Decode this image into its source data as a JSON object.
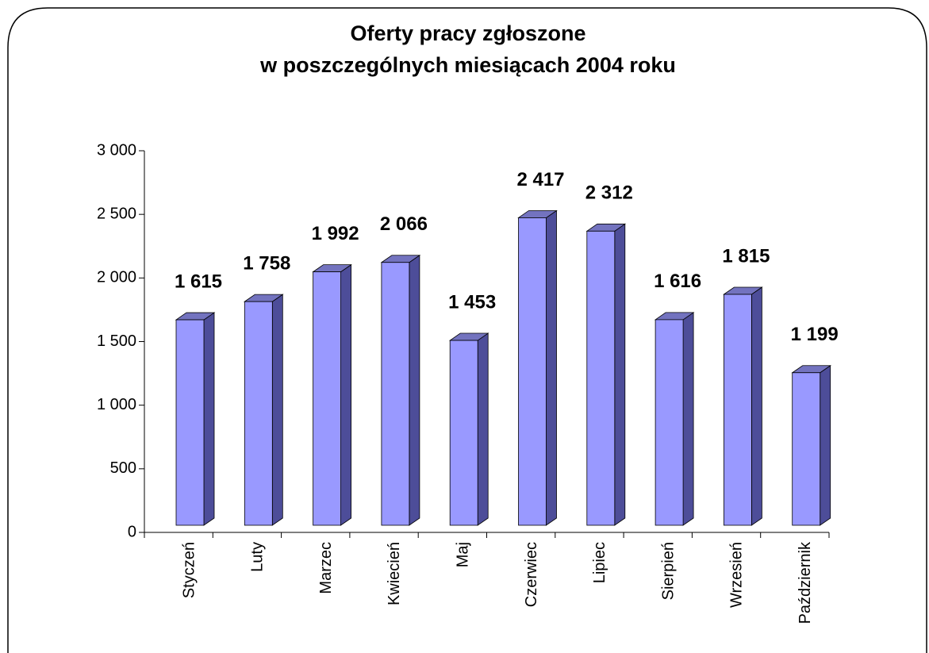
{
  "chart_data": {
    "type": "bar",
    "title": [
      "Oferty pracy zgłoszone",
      "w poszczególnych miesiącach 2004 roku"
    ],
    "categories": [
      "Styczeń",
      "Luty",
      "Marzec",
      "Kwiecień",
      "Maj",
      "Czerwiec",
      "Lipiec",
      "Sierpień",
      "Wrzesień",
      "Październik"
    ],
    "values": [
      1615,
      1758,
      1992,
      2066,
      1453,
      2417,
      2312,
      1616,
      1815,
      1199
    ],
    "value_labels": [
      "1 615",
      "1 758",
      "1 992",
      "2 066",
      "1 453",
      "2 417",
      "2 312",
      "1 616",
      "1 815",
      "1 199"
    ],
    "color": "#9999ff",
    "ylim": [
      0,
      3000
    ],
    "yticks": [
      0,
      500,
      {
        "value": 1000,
        "label": "1 000"
      },
      {
        "value": 1500,
        "label": "1 500"
      },
      {
        "value": 2000,
        "label": "2 000"
      },
      {
        "value": 2500,
        "label": "2 500"
      },
      {
        "value": 3000,
        "label": "3 000"
      }
    ]
  }
}
